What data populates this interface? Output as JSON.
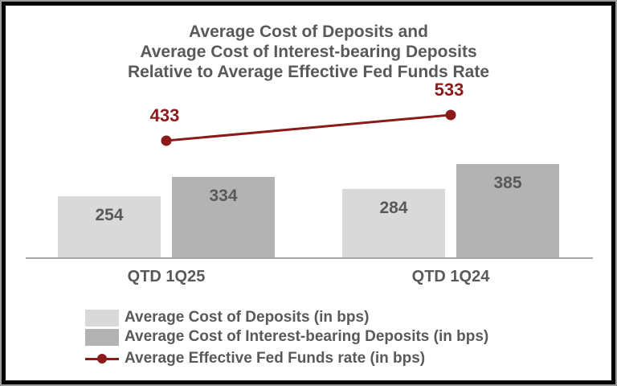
{
  "palette": {
    "background": "#ffffff",
    "text_gray": "#595959",
    "bar_light": "#d9d9d9",
    "bar_dark": "#b3b3b3",
    "line_red": "#8b1b1b",
    "axis_gray": "#a6a6a6",
    "frame_black": "#000000",
    "frame_gray": "#9c9c9c"
  },
  "chart_data": {
    "type": "bar",
    "subtype": "grouped-bars-with-overlay-line",
    "title": "Average Cost of Deposits and Average Cost of Interest-bearing Deposits Relative to Average Effective Fed Funds Rate",
    "title_lines": [
      "Average Cost of Deposits and",
      "Average Cost of Interest-bearing Deposits",
      "Relative to Average Effective Fed Funds Rate"
    ],
    "categories": [
      "QTD 1Q25",
      "QTD 1Q24"
    ],
    "series": [
      {
        "name": "Average Cost of Deposits (in bps)",
        "type": "bar",
        "color": "#d9d9d9",
        "values": [
          254,
          284
        ]
      },
      {
        "name": "Average Cost of Interest-bearing Deposits (in bps)",
        "type": "bar",
        "color": "#b3b3b3",
        "values": [
          334,
          385
        ]
      },
      {
        "name": "Average Effective Fed Funds rate (in bps)",
        "type": "line",
        "color": "#8b1b1b",
        "values": [
          433,
          533
        ]
      }
    ],
    "unit": "bps",
    "value_labels_shown": true,
    "grid": false,
    "y_axis_shown": false,
    "x_axis_line_shown": true,
    "legend_position": "bottom-left"
  }
}
